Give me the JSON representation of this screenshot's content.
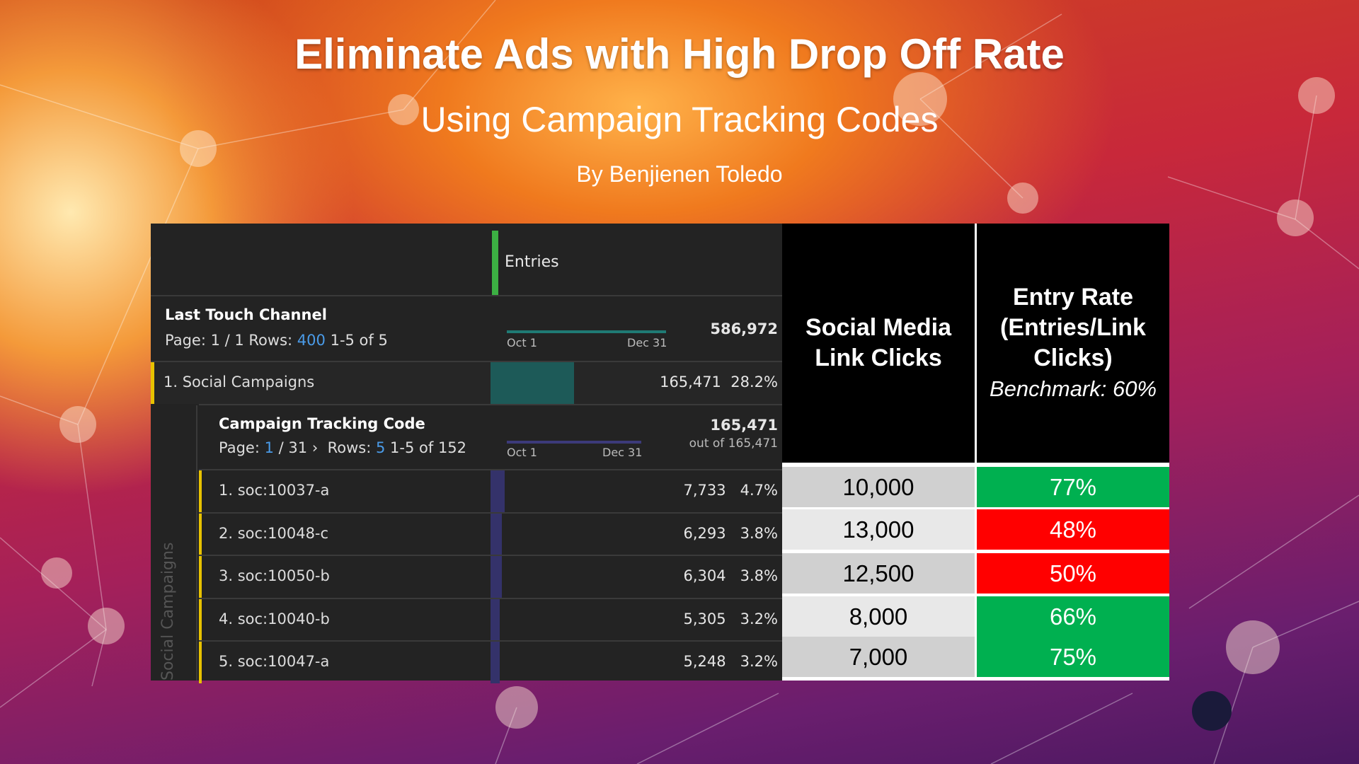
{
  "slide": {
    "title": "Eliminate Ads with High Drop Off Rate",
    "subtitle": "Using Campaign Tracking Codes",
    "byline": "By Benjienen Toledo"
  },
  "report": {
    "metric_header": "Entries",
    "dimension": {
      "title": "Last Touch Channel",
      "page_label": "Page: 1 / 1 Rows:",
      "rows_value": "400",
      "range": "1-5 of 5",
      "spark_start": "Oct 1",
      "spark_end": "Dec 31",
      "total": "586,972"
    },
    "channel_row": {
      "label": "1.  Social Campaigns",
      "value": "165,471",
      "pct": "28.2%",
      "fraction": 0.282
    },
    "breakdown": {
      "side_label": "Social Campaigns",
      "title": "Campaign Tracking Code",
      "page_label": "Page:",
      "page_value": "1",
      "page_total": "/ 31",
      "rows_label": "Rows:",
      "rows_value": "5",
      "range": "1-5 of 152",
      "spark_start": "Oct 1",
      "spark_end": "Dec 31",
      "total": "165,471",
      "out_of": "out of 165,471"
    },
    "rows": [
      {
        "label": "1.  soc:10037-a",
        "value": "7,733",
        "pct": "4.7%",
        "fraction": 0.047
      },
      {
        "label": "2.  soc:10048-c",
        "value": "6,293",
        "pct": "3.8%",
        "fraction": 0.038
      },
      {
        "label": "3.  soc:10050-b",
        "value": "6,304",
        "pct": "3.8%",
        "fraction": 0.038
      },
      {
        "label": "4.  soc:10040-b",
        "value": "5,305",
        "pct": "3.2%",
        "fraction": 0.032
      },
      {
        "label": "5.  soc:10047-a",
        "value": "5,248",
        "pct": "3.2%",
        "fraction": 0.032
      }
    ]
  },
  "summary": {
    "col1_header": "Social Media Link Clicks",
    "col2_header": "Entry Rate (Entries/Link Clicks)",
    "benchmark": "Benchmark: 60%",
    "rows": [
      {
        "clicks": "10,000",
        "rate": "77%",
        "status": "good"
      },
      {
        "clicks": "13,000",
        "rate": "48%",
        "status": "bad"
      },
      {
        "clicks": "12,500",
        "rate": "50%",
        "status": "bad"
      },
      {
        "clicks": "8,000",
        "rate": "66%",
        "status": "good"
      },
      {
        "clicks": "7,000",
        "rate": "75%",
        "status": "good"
      }
    ],
    "colors": {
      "good": "#00b050",
      "bad": "#ff0000"
    }
  }
}
